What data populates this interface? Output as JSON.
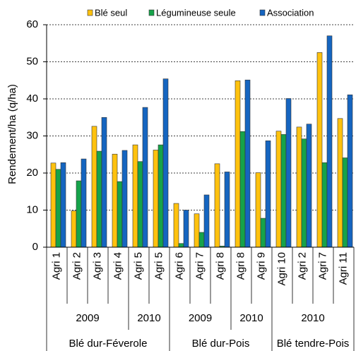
{
  "chart_data": {
    "type": "bar",
    "y_label": "Rendement/ha (q/ha)",
    "groups": [
      {
        "label": "Blé dur-Féverole",
        "groups": [
          {
            "label": "2009",
            "categories": [
              "Agri 1",
              "Agri 2",
              "Agri 3",
              "Agri 4"
            ]
          },
          {
            "label": "2010",
            "categories": [
              "Agri 5",
              "Agri 5"
            ]
          }
        ]
      },
      {
        "label": "Blé dur-Pois",
        "groups": [
          {
            "label": "2009",
            "categories": [
              "Agri 6",
              "Agri 7",
              "Agri 8"
            ]
          },
          {
            "label": "2010",
            "categories": [
              "Agri 8",
              "Agri 9"
            ]
          }
        ]
      },
      {
        "label": "Blé tendre-Pois",
        "groups": [
          {
            "label": "2010",
            "categories": [
              "Agri 10",
              "Agri 2",
              "Agri 7",
              "Agri 11"
            ]
          }
        ]
      }
    ],
    "series": [
      {
        "name": "Blé seul",
        "color": "#ffc20e",
        "values": [
          22.7,
          9.8,
          32.6,
          25.1,
          27.6,
          26.2,
          11.8,
          9,
          22.5,
          44.9,
          20.1,
          31.3,
          32.4,
          52.5,
          34.7
        ]
      },
      {
        "name": "Légumineuse seule",
        "color": "#16a34a",
        "values": [
          21,
          17.9,
          25.9,
          17.7,
          23.1,
          27.6,
          1,
          4,
          0.3,
          31.2,
          7.8,
          30.4,
          29.2,
          22.8,
          24.1
        ]
      },
      {
        "name": "Association",
        "color": "#1565c0",
        "values": [
          22.8,
          23.8,
          35,
          26.1,
          37.7,
          45.4,
          10,
          14.1,
          20.3,
          45.1,
          28.7,
          40.1,
          33.2,
          57,
          41.1
        ]
      }
    ],
    "ylim": [
      0,
      60
    ],
    "yticks": [
      0,
      10,
      20,
      30,
      40,
      50,
      60
    ],
    "grid": true
  }
}
